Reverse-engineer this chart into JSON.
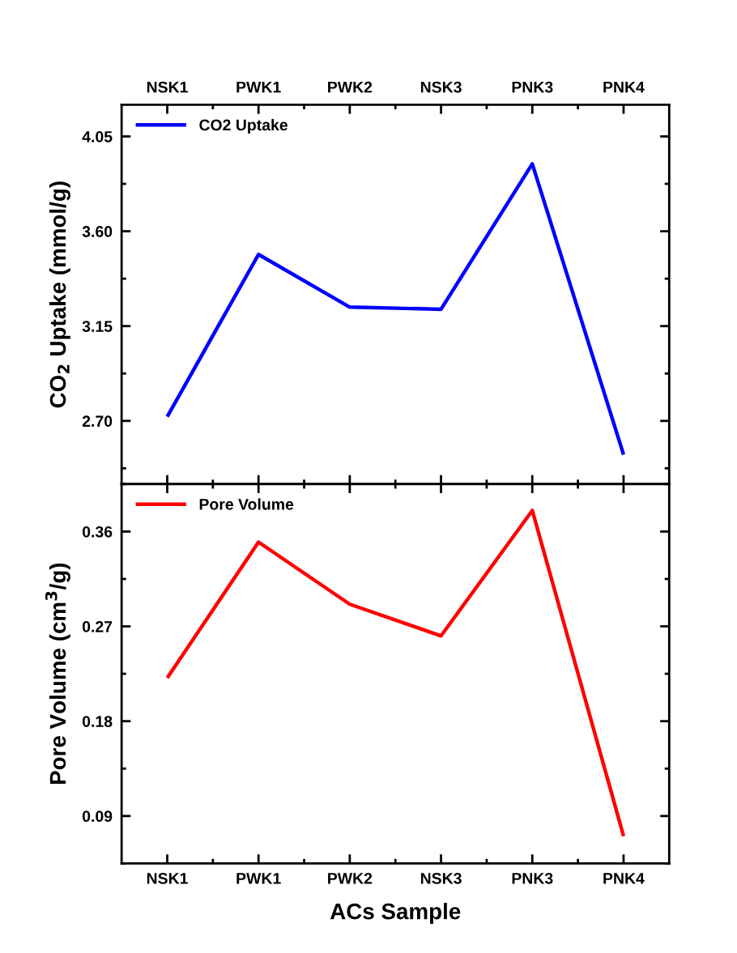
{
  "chart_data": [
    {
      "type": "line",
      "ylabel": "CO$_{2}$ Uptake (mmol/g)",
      "categories": [
        "NSK1",
        "PWK1",
        "PWK2",
        "NSK3",
        "PNK3",
        "PNK4"
      ],
      "series": [
        {
          "name": "CO2 Uptake",
          "color": "#0000ff",
          "values": [
            2.72,
            3.49,
            3.24,
            3.23,
            3.92,
            2.54
          ]
        }
      ],
      "ylim": [
        2.4,
        4.2
      ],
      "yticks": [
        {
          "value": 2.7,
          "label": "2.70"
        },
        {
          "value": 3.15,
          "label": "3.15"
        },
        {
          "value": 3.6,
          "label": "3.60"
        },
        {
          "value": 4.05,
          "label": "4.05"
        }
      ],
      "legend": "top left",
      "grid": false,
      "line_style": "solid"
    },
    {
      "type": "line",
      "xlabel": "ACs Sample",
      "ylabel": "Pore Volume (cm$^{3}$/g)",
      "categories": [
        "NSK1",
        "PWK1",
        "PWK2",
        "NSK3",
        "PNK3",
        "PNK4"
      ],
      "series": [
        {
          "name": "Pore Volume",
          "color": "#ff0000",
          "values": [
            0.221,
            0.35,
            0.291,
            0.261,
            0.38,
            0.071
          ]
        }
      ],
      "ylim": [
        0.045,
        0.405
      ],
      "yticks": [
        0.09,
        0.18,
        0.27,
        0.36
      ],
      "legend": "top left",
      "grid": false,
      "line_style": "solid"
    }
  ]
}
